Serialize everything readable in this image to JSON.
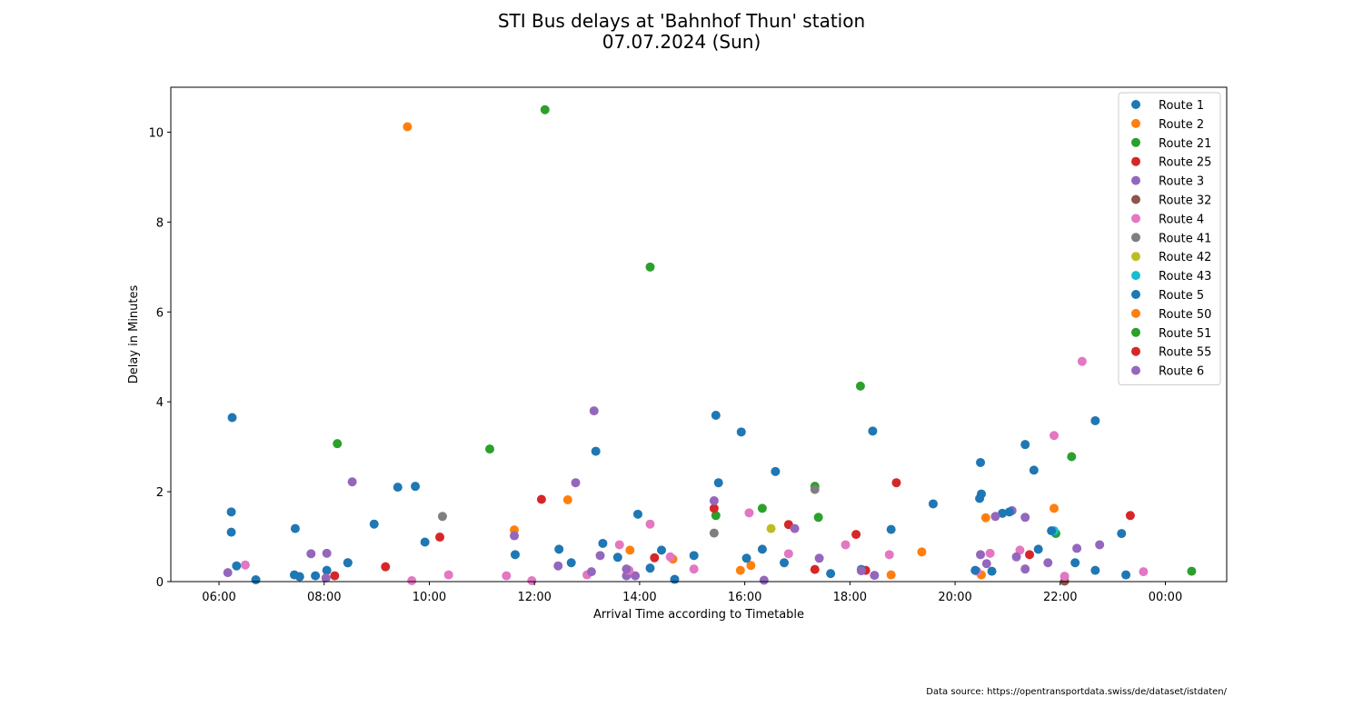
{
  "title_line1": "STI Bus delays at 'Bahnhof Thun' station",
  "title_line2": "07.07.2024 (Sun)",
  "source": "Data source: https://opentransportdata.swiss/de/dataset/istdaten/",
  "chart_data": {
    "type": "scatter",
    "xlabel": "Arrival Time according to Timetable",
    "ylabel": "Delay in Minutes",
    "xlim": [
      "05:05",
      "01:10"
    ],
    "ylim": [
      0,
      11
    ],
    "x_tick_labels": [
      "06:00",
      "08:00",
      "10:00",
      "12:00",
      "14:00",
      "16:00",
      "18:00",
      "20:00",
      "22:00",
      "00:00"
    ],
    "y_tick_labels": [
      "0",
      "2",
      "4",
      "6",
      "8",
      "10"
    ],
    "grid": false,
    "legend_position": "top-right",
    "series": [
      {
        "name": "Route 1",
        "color": "#1f77b4",
        "points": [
          [
            "06:15",
            3.65
          ],
          [
            "06:14",
            1.55
          ],
          [
            "06:14",
            1.1
          ],
          [
            "06:20",
            0.35
          ],
          [
            "07:27",
            1.18
          ],
          [
            "07:26",
            0.15
          ],
          [
            "07:50",
            0.13
          ],
          [
            "08:03",
            0.25
          ],
          [
            "08:27",
            0.42
          ],
          [
            "08:57",
            1.28
          ],
          [
            "09:44",
            2.12
          ],
          [
            "09:55",
            0.88
          ],
          [
            "11:38",
            0.6
          ],
          [
            "12:28",
            0.72
          ],
          [
            "13:10",
            2.9
          ],
          [
            "13:35",
            0.54
          ],
          [
            "13:58",
            1.5
          ],
          [
            "14:25",
            0.7
          ],
          [
            "15:02",
            0.58
          ],
          [
            "15:27",
            3.7
          ],
          [
            "15:56",
            3.33
          ],
          [
            "16:20",
            0.72
          ],
          [
            "16:35",
            2.45
          ],
          [
            "17:38",
            0.18
          ],
          [
            "18:26",
            3.35
          ],
          [
            "18:47",
            1.16
          ],
          [
            "19:35",
            1.73
          ],
          [
            "20:29",
            2.65
          ],
          [
            "20:28",
            1.85
          ],
          [
            "20:54",
            1.52
          ],
          [
            "21:35",
            0.72
          ],
          [
            "22:17",
            0.42
          ],
          [
            "22:40",
            3.58
          ],
          [
            "23:10",
            1.07
          ]
        ]
      },
      {
        "name": "Route 2",
        "color": "#ff7f0e",
        "points": [
          [
            "09:35",
            10.12
          ],
          [
            "11:37",
            1.15
          ],
          [
            "12:38",
            1.82
          ],
          [
            "13:49",
            0.7
          ],
          [
            "14:38",
            0.5
          ],
          [
            "15:55",
            0.25
          ],
          [
            "16:07",
            0.36
          ],
          [
            "18:47",
            0.15
          ],
          [
            "19:22",
            0.66
          ],
          [
            "20:30",
            0.15
          ],
          [
            "20:35",
            1.42
          ],
          [
            "21:53",
            1.63
          ]
        ]
      },
      {
        "name": "Route 21",
        "color": "#2ca02c",
        "points": [
          [
            "08:15",
            3.07
          ],
          [
            "11:09",
            2.95
          ],
          [
            "12:12",
            10.5
          ],
          [
            "14:12",
            7.0
          ],
          [
            "15:27",
            1.47
          ],
          [
            "16:20",
            1.63
          ],
          [
            "17:20",
            2.12
          ],
          [
            "17:24",
            1.43
          ],
          [
            "18:12",
            4.35
          ],
          [
            "21:55",
            1.07
          ],
          [
            "22:13",
            2.78
          ],
          [
            "00:30",
            0.23
          ]
        ]
      },
      {
        "name": "Route 25",
        "color": "#d62728",
        "points": [
          [
            "08:12",
            0.13
          ],
          [
            "09:10",
            0.33
          ],
          [
            "10:12",
            0.99
          ],
          [
            "12:08",
            1.83
          ],
          [
            "14:17",
            0.53
          ],
          [
            "15:25",
            1.63
          ],
          [
            "16:50",
            1.27
          ],
          [
            "17:20",
            0.27
          ],
          [
            "18:07",
            1.05
          ],
          [
            "18:18",
            0.25
          ],
          [
            "18:53",
            2.2
          ],
          [
            "21:25",
            0.6
          ],
          [
            "23:20",
            1.47
          ]
        ]
      },
      {
        "name": "Route 3",
        "color": "#9467bd",
        "points": [
          [
            "06:10",
            0.2
          ],
          [
            "07:45",
            0.62
          ],
          [
            "08:03",
            0.63
          ],
          [
            "08:32",
            2.22
          ],
          [
            "11:37",
            1.02
          ],
          [
            "12:27",
            0.35
          ],
          [
            "12:47",
            2.2
          ],
          [
            "13:08",
            3.8
          ],
          [
            "13:15",
            0.58
          ],
          [
            "13:45",
            0.13
          ],
          [
            "13:55",
            0.13
          ],
          [
            "15:25",
            1.8
          ],
          [
            "16:22",
            0.03
          ],
          [
            "16:57",
            1.18
          ],
          [
            "17:25",
            0.52
          ],
          [
            "18:28",
            0.14
          ],
          [
            "20:29",
            0.6
          ],
          [
            "20:46",
            1.45
          ],
          [
            "21:05",
            1.58
          ],
          [
            "21:20",
            1.43
          ],
          [
            "21:46",
            0.42
          ],
          [
            "22:19",
            0.74
          ],
          [
            "22:45",
            0.82
          ]
        ]
      },
      {
        "name": "Route 32",
        "color": "#8c564b",
        "points": [
          [
            "22:05",
            0.01
          ]
        ]
      },
      {
        "name": "Route 4",
        "color": "#e377c2",
        "points": [
          [
            "06:30",
            0.37
          ],
          [
            "09:40",
            0.02
          ],
          [
            "10:22",
            0.15
          ],
          [
            "11:28",
            0.13
          ],
          [
            "11:57",
            0.02
          ],
          [
            "13:00",
            0.15
          ],
          [
            "13:37",
            0.82
          ],
          [
            "13:48",
            0.25
          ],
          [
            "14:12",
            1.28
          ],
          [
            "14:35",
            0.55
          ],
          [
            "15:02",
            0.28
          ],
          [
            "16:05",
            1.53
          ],
          [
            "16:50",
            0.62
          ],
          [
            "17:55",
            0.82
          ],
          [
            "18:45",
            0.6
          ],
          [
            "20:25",
            0.23
          ],
          [
            "20:40",
            0.63
          ],
          [
            "21:14",
            0.7
          ],
          [
            "21:53",
            3.25
          ],
          [
            "22:05",
            0.12
          ],
          [
            "22:25",
            4.9
          ],
          [
            "23:35",
            0.22
          ]
        ]
      },
      {
        "name": "Route 41",
        "color": "#7f7f7f",
        "points": [
          [
            "10:15",
            1.45
          ],
          [
            "15:25",
            1.08
          ],
          [
            "17:20",
            2.05
          ]
        ]
      },
      {
        "name": "Route 42",
        "color": "#bcbd22",
        "points": [
          [
            "16:30",
            1.18
          ]
        ]
      },
      {
        "name": "Route 43",
        "color": "#17becf",
        "points": [
          [
            "21:53",
            1.13
          ]
        ]
      },
      {
        "name": "Route 5",
        "color": "#1f77b4",
        "points": [
          [
            "06:42",
            0.04
          ],
          [
            "07:32",
            0.11
          ],
          [
            "08:27",
            0.42
          ],
          [
            "09:24",
            2.1
          ],
          [
            "12:42",
            0.42
          ],
          [
            "13:18",
            0.85
          ],
          [
            "14:12",
            0.3
          ],
          [
            "14:40",
            0.05
          ],
          [
            "15:30",
            2.2
          ],
          [
            "16:02",
            0.52
          ],
          [
            "16:45",
            0.42
          ],
          [
            "18:13",
            0.27
          ],
          [
            "20:23",
            0.25
          ],
          [
            "20:30",
            1.95
          ],
          [
            "20:42",
            0.23
          ],
          [
            "21:02",
            1.55
          ],
          [
            "21:20",
            3.05
          ],
          [
            "21:30",
            2.48
          ],
          [
            "21:50",
            1.13
          ],
          [
            "22:40",
            0.25
          ],
          [
            "23:15",
            0.15
          ]
        ]
      },
      {
        "name": "Route 50",
        "color": "#ff7f0e",
        "points": []
      },
      {
        "name": "Route 51",
        "color": "#2ca02c",
        "points": []
      },
      {
        "name": "Route 55",
        "color": "#d62728",
        "points": []
      },
      {
        "name": "Route 6",
        "color": "#9467bd",
        "points": [
          [
            "08:02",
            0.08
          ],
          [
            "13:05",
            0.22
          ],
          [
            "13:45",
            0.28
          ],
          [
            "18:13",
            0.24
          ],
          [
            "20:36",
            0.4
          ],
          [
            "21:10",
            0.55
          ],
          [
            "21:20",
            0.28
          ]
        ]
      }
    ]
  }
}
